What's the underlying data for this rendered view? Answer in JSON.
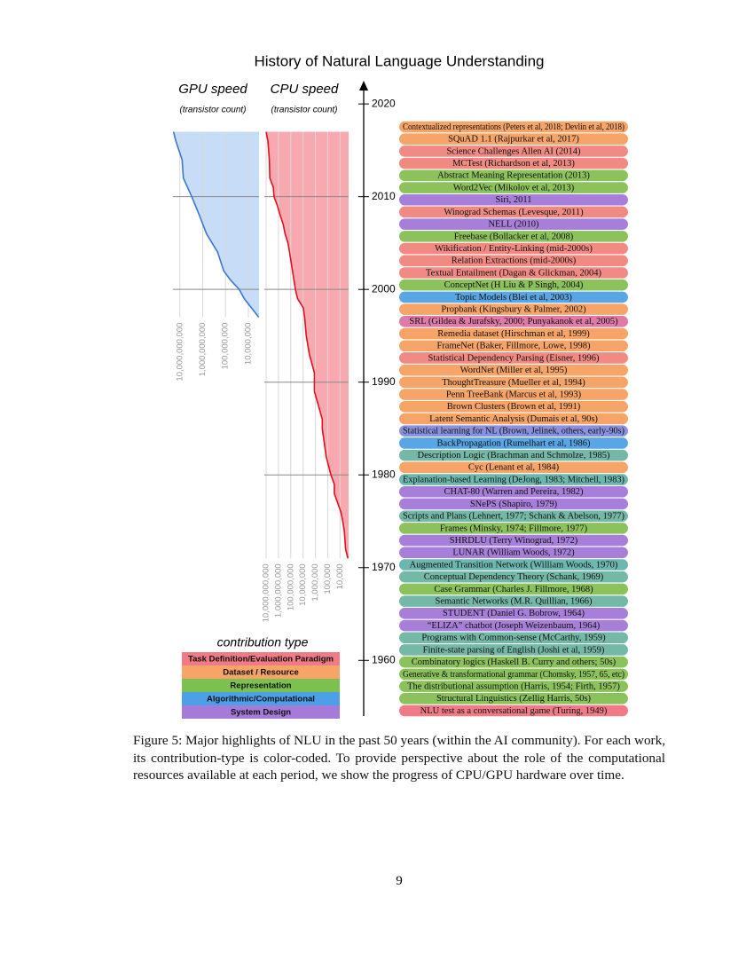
{
  "figure": {
    "title": "History of Natural Language Understanding",
    "gpu": {
      "title": "GPU speed",
      "subtitle": "(transistor count)",
      "color": "#3b78d0",
      "fill": "#c6dcf7",
      "years": [
        1997,
        1999,
        2000,
        2001,
        2002,
        2004,
        2006,
        2008,
        2010,
        2012,
        2014,
        2016,
        2017
      ],
      "values": [
        3500000,
        15000000,
        25000000,
        60000000,
        120000000,
        220000000,
        680000000,
        1400000000,
        3000000000,
        7000000000,
        8000000000,
        15000000000,
        19000000000
      ],
      "xlim": [
        20000000000,
        3400000
      ],
      "xticks": [
        {
          "value": 10000000000,
          "label": "10,000,000,000"
        },
        {
          "value": 1000000000,
          "label": "1,000,000,000"
        },
        {
          "value": 100000000,
          "label": "100,000,000"
        },
        {
          "value": 10000000,
          "label": "10,000,000"
        }
      ],
      "log_scale": true
    },
    "cpu": {
      "title": "CPU speed",
      "subtitle": "(transistor count)",
      "color": "#e0101e",
      "fill": "#f8a9b0",
      "years": [
        1971,
        1972,
        1974,
        1975,
        1976,
        1978,
        1979,
        1980,
        1982,
        1985,
        1986,
        1989,
        1991,
        1993,
        1995,
        1997,
        1998,
        1999,
        2000,
        2001,
        2004,
        2005,
        2006,
        2007,
        2008,
        2009,
        2010,
        2011,
        2012,
        2014,
        2016,
        2017
      ],
      "values": [
        2300,
        3500,
        4500,
        6000,
        8500,
        29000,
        29000,
        55000,
        134000,
        275000,
        275000,
        1200000,
        1200000,
        3100000,
        5500000,
        7500000,
        9500000,
        28000000,
        42000000,
        55000000,
        125000000,
        170000000,
        290000000,
        410000000,
        730000000,
        1200000000,
        2300000000,
        2600000000,
        5000000000,
        5500000000,
        7200000000,
        10000000000
      ],
      "xlim": [
        14000000000,
        2000
      ],
      "xticks": [
        {
          "value": 10000000000,
          "label": "10,000,000,000"
        },
        {
          "value": 1000000000,
          "label": "1,000,000,000"
        },
        {
          "value": 100000000,
          "label": "100,000,000"
        },
        {
          "value": 10000000,
          "label": "10,000,000"
        },
        {
          "value": 1000000,
          "label": "1,000,000"
        },
        {
          "value": 100000,
          "label": "100,000"
        },
        {
          "value": 10000,
          "label": "10,000"
        }
      ],
      "log_scale": true
    },
    "timeline": {
      "ylim": [
        1954,
        2022.5
      ],
      "yticks": [
        1960,
        1970,
        1980,
        1990,
        2000,
        2010,
        2020
      ],
      "items": [
        {
          "label": "Contextualized representations (Peters et al, 2018; Devlin et al, 2018)",
          "color": "#f6a468"
        },
        {
          "label": "SQuAD 1.1 (Rajpurkar et al, 2017)",
          "color": "#f6a468"
        },
        {
          "label": "Science Challenges Allen AI  (2014)",
          "color": "#f28a84"
        },
        {
          "label": "MCTest (Richardson et al, 2013)",
          "color": "#f28a84"
        },
        {
          "label": "Abstract Meaning Representation (2013)",
          "color": "#8cc25c"
        },
        {
          "label": "Word2Vec (Mikolov et al, 2013)",
          "color": "#8cc25c"
        },
        {
          "label": "Siri, 2011",
          "color": "#a77fdb"
        },
        {
          "label": "Winograd Schemas (Levesque, 2011)",
          "color": "#f28a84"
        },
        {
          "label": "NELL (2010)",
          "color": "#a77fdb"
        },
        {
          "label": "Freebase (Bollacker et al, 2008)",
          "color": "#8cc25c"
        },
        {
          "label": "Wikification / Entity-Linking (mid-2000s)",
          "color": "#f28a84"
        },
        {
          "label": "Relation Extractions (mid-2000s)",
          "color": "#f28a84"
        },
        {
          "label": "Textual Entailment (Dagan & Glickman, 2004)",
          "color": "#f28a84"
        },
        {
          "label": "ConceptNet (H Liu & P Singh, 2004)",
          "color": "#8cc25c"
        },
        {
          "label": "Topic Models (Blei et al, 2003)",
          "color": "#58a6e6"
        },
        {
          "label": "Propbank (Kingsbury & Palmer, 2002)",
          "color": "#f6a468"
        },
        {
          "label": "SRL (Gildea & Jurafsky, 2000; Punyakanok et al, 2005)",
          "color": "#e07aa8"
        },
        {
          "label": "Remedia dataset (Hirschman et al, 1999)",
          "color": "#f6a468"
        },
        {
          "label": "FrameNet (Baker, Fillmore, Lowe, 1998)",
          "color": "#f6a468"
        },
        {
          "label": "Statistical Dependency Parsing (Eisner, 1996)",
          "color": "#f28a84"
        },
        {
          "label": "WordNet (Miller et al, 1995)",
          "color": "#f6a468"
        },
        {
          "label": "ThoughtTreasure (Mueller et al, 1994)",
          "color": "#f6a468"
        },
        {
          "label": "Penn TreeBank (Marcus et al, 1993)",
          "color": "#f6a468"
        },
        {
          "label": "Brown Clusters (Brown et al, 1991)",
          "color": "#f6a468"
        },
        {
          "label": "Latent Semantic Analysis (Dumais et al, 90s)",
          "color": "#f6a468"
        },
        {
          "label": "Statistical learning for NL (Brown, Jelinek, others, early-90s)",
          "color": "#8a92e0"
        },
        {
          "label": "BackPropagation (Rumelhart et al, 1986)",
          "color": "#58a6e6"
        },
        {
          "label": "Description Logic (Brachman and Schmolze, 1985)",
          "color": "#74b8a8"
        },
        {
          "label": "Cyc (Lenant et al, 1984)",
          "color": "#f6a468"
        },
        {
          "label": "Explanation-based Learning (DeJong, 1983; Mitchell, 1983)",
          "color": "#6cb8b0"
        },
        {
          "label": "CHAT-80 (Warren and Pereira, 1982)",
          "color": "#a77fdb"
        },
        {
          "label": "SNePS (Shapiro, 1979)",
          "color": "#a77fdb"
        },
        {
          "label": "Scripts and Plans (Lehnert, 1977; Schank & Abelson, 1977)",
          "color": "#74b8a8"
        },
        {
          "label": "Frames (Minsky, 1974; Fillmore, 1977)",
          "color": "#8cc25c"
        },
        {
          "label": "SHRDLU (Terry Winograd, 1972)",
          "color": "#a77fdb"
        },
        {
          "label": "LUNAR (William Woods, 1972)",
          "color": "#a77fdb"
        },
        {
          "label": "Augmented Transition Network (William Woods, 1970)",
          "color": "#6cb8b0"
        },
        {
          "label": "Conceptual Dependency Theory (Schank, 1969)",
          "color": "#74b8a8"
        },
        {
          "label": "Case Grammar (Charles J. Fillmore, 1968)",
          "color": "#8cc25c"
        },
        {
          "label": "Semantic Networks (M.R. Quillian, 1966)",
          "color": "#74b8a8"
        },
        {
          "label": "STUDENT (Daniel G. Bobrow, 1964)",
          "color": "#a77fdb"
        },
        {
          "label": "“ELIZA” chatbot (Joseph Weizenbaum, 1964)",
          "color": "#a77fdb"
        },
        {
          "label": "Programs with Common-sense (McCarthy, 1959)",
          "color": "#74b8a8"
        },
        {
          "label": "Finite-state parsing of English (Joshi et al, 1959)",
          "color": "#74b8a8"
        },
        {
          "label": "Combinatory logics (Haskell B. Curry and others; 50s)",
          "color": "#8cc25c"
        },
        {
          "label": "Generative & transformational grammar (Chomsky, 1957, 65, etc)",
          "color": "#8cc25c"
        },
        {
          "label": "The distributional assumption (Harris, 1954; Firth, 1957)",
          "color": "#8cc25c"
        },
        {
          "label": "Structural Linguistics (Zellig Harris, 50s)",
          "color": "#8cc25c"
        },
        {
          "label": "NLU test as a conversational game (Turing, 1949)",
          "color": "#f07a86"
        }
      ]
    },
    "legend": {
      "title": "contribution type",
      "types": [
        {
          "label": "Task Definition/Evaluation Paradigm",
          "color": "#f07a86"
        },
        {
          "label": "Dataset / Resource",
          "color": "#f6a468"
        },
        {
          "label": "Representation",
          "color": "#7cc050"
        },
        {
          "label": "Algorithmic/Computational",
          "color": "#4ba0e8"
        },
        {
          "label": "System Design",
          "color": "#a57ad8"
        }
      ]
    }
  },
  "caption": "Figure 5: Major highlights of NLU in the past 50 years (within the AI community). For each work, its contribution-type is color-coded. To provide perspective about the role of the computational resources available at each period, we show the progress of CPU/GPU hardware over time.",
  "page_number": 9
}
